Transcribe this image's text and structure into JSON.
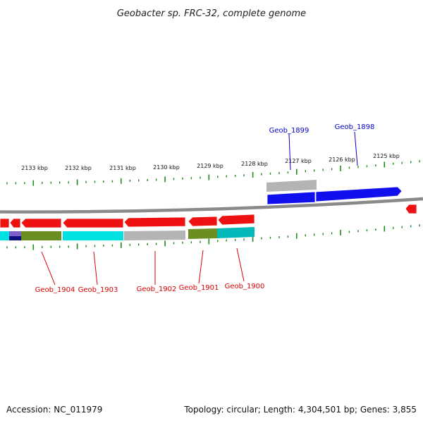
{
  "title": "Geobacter sp. FRC-32, complete genome",
  "accession_label": "Accession: NC_011979",
  "summary_label": "Topology: circular; Length: 4,304,501 bp; Genes: 3,855",
  "colors": {
    "backbone": "#8a8a8a",
    "tick": "#1f8a1f",
    "forward_gene": "#1010ee",
    "reverse_gene": "#ee1111",
    "gene_label_forward": "#0000cc",
    "gene_label_reverse": "#dd0000",
    "cog_gray": "#b4b4b4",
    "cog_cyan": "#00e0e0",
    "cog_olive": "#6b8e23",
    "cog_teal": "#00b8b8",
    "cog_purple": "#7a5fc8",
    "cog_navy": "#0a1080"
  },
  "ruler": {
    "ticks": [
      "2133 kbp",
      "2132 kbp",
      "2131 kbp",
      "2130 kbp",
      "2129 kbp",
      "2128 kbp",
      "2127 kbp",
      "2126 kbp",
      "2125 kbp"
    ]
  },
  "genes": {
    "forward": [
      {
        "label": "Geob_1899"
      },
      {
        "label": "Geob_1898"
      }
    ],
    "reverse": [
      {
        "label": "Geob_1904"
      },
      {
        "label": "Geob_1903"
      },
      {
        "label": "Geob_1902"
      },
      {
        "label": "Geob_1901"
      },
      {
        "label": "Geob_1900"
      }
    ]
  }
}
